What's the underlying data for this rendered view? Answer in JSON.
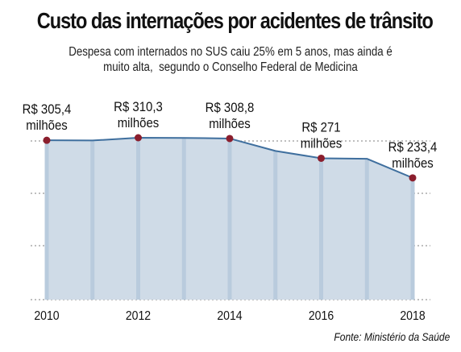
{
  "title": "Custo das internações por acidentes de trânsito",
  "subtitle": {
    "line1": "Despesa com internados no SUS caiu 25% em 5 anos, mas ainda é",
    "line2": "muito alta,  segundo o Conselho Federal de Medicina"
  },
  "source": "Fonte: Ministério da Saúde",
  "colors": {
    "area_fill": "#cfdbe7",
    "bar_fill": "#b9cbdd",
    "line": "#3f6f9e",
    "marker": "#8b1e2d",
    "grid": "#555555"
  },
  "chart_data": {
    "type": "area",
    "title": "",
    "xlabel": "",
    "ylabel": "",
    "x": [
      2010,
      2011,
      2012,
      2013,
      2014,
      2015,
      2016,
      2017,
      2018
    ],
    "x_tick_labels": [
      "2010",
      "2012",
      "2014",
      "2016",
      "2018"
    ],
    "series": [
      {
        "values": [
          305.4,
          305.0,
          310.3,
          310.0,
          308.8,
          285.0,
          271.0,
          270.0,
          233.4
        ]
      }
    ],
    "labeled_points": [
      {
        "x": 2010,
        "value": 305.4,
        "line1": "R$ 305,4",
        "line2": "milhões"
      },
      {
        "x": 2012,
        "value": 310.3,
        "line1": "R$ 310,3",
        "line2": "milhões"
      },
      {
        "x": 2014,
        "value": 308.8,
        "line1": "R$ 308,8",
        "line2": "milhões"
      },
      {
        "x": 2016,
        "value": 271.0,
        "line1": "R$ 271",
        "line2": "milhões"
      },
      {
        "x": 2018,
        "value": 233.4,
        "line1": "R$ 233,4",
        "line2": "milhões"
      }
    ],
    "ylim": [
      0,
      310.3
    ],
    "grid": true
  }
}
